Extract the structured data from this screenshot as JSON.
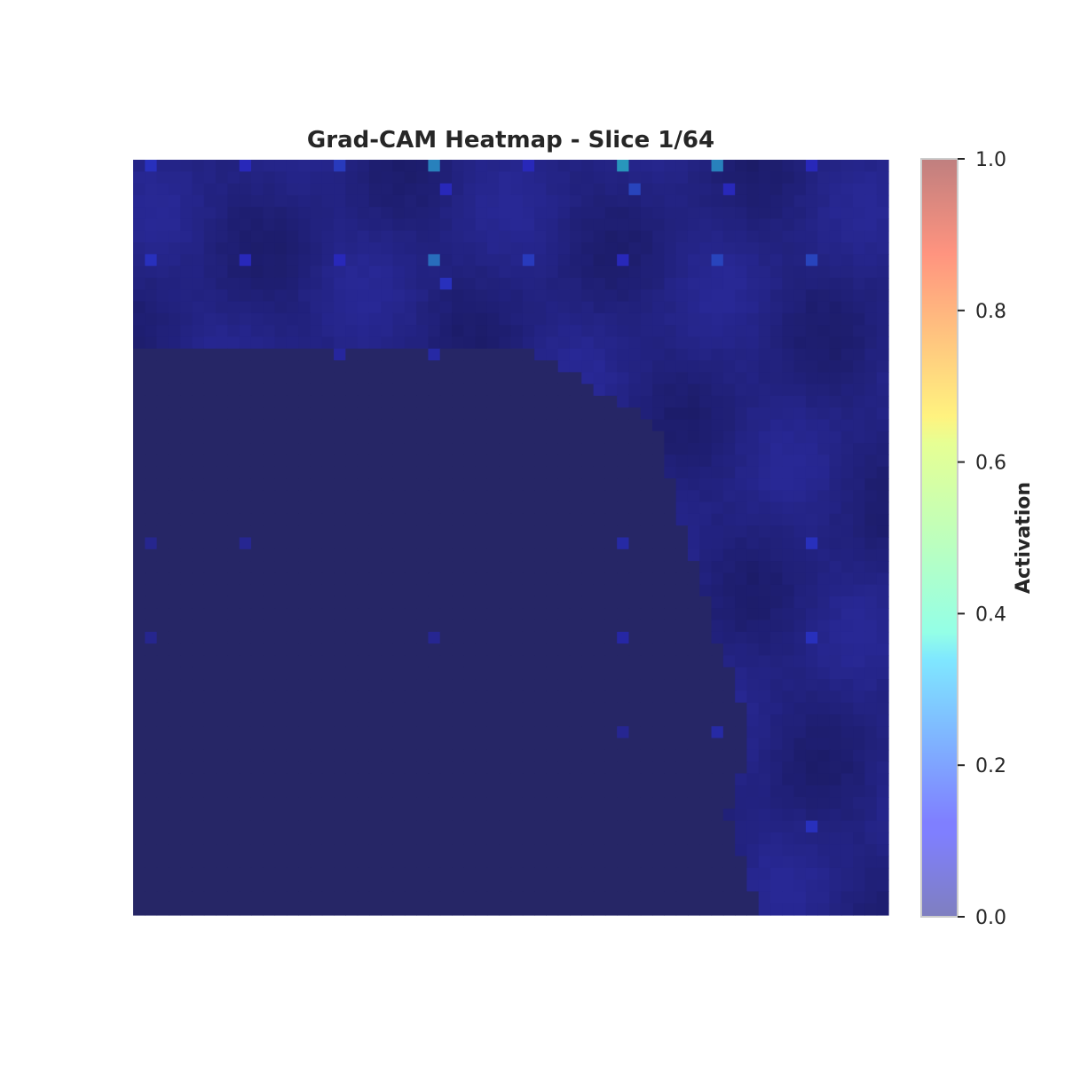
{
  "chart_data": {
    "type": "heatmap",
    "title": "Grad-CAM Heatmap - Slice 1/64",
    "grid_size": [
      64,
      64
    ],
    "value_range": [
      0.0,
      1.0
    ],
    "colormap": "jet",
    "overlay_alpha": 0.5,
    "axes_visible": false,
    "colorbar": {
      "label": "Activation",
      "ticks": [
        "0.0",
        "0.2",
        "0.4",
        "0.6",
        "0.8",
        "1.0"
      ],
      "tick_values": [
        0.0,
        0.2,
        0.4,
        0.6,
        0.8,
        1.0
      ],
      "placement": "right"
    },
    "background_levels": {
      "low_region": 0.0,
      "tissue_region": 0.05
    },
    "low_region_boundary_row_start_col": [
      {
        "row": 16,
        "col_end": 34
      },
      {
        "row": 22,
        "col_end": 44
      },
      {
        "row": 30,
        "col_end": 46
      },
      {
        "row": 40,
        "col_end": 49
      },
      {
        "row": 48,
        "col_end": 52
      },
      {
        "row": 55,
        "col_end": 50
      },
      {
        "row": 64,
        "col_end": 53
      }
    ],
    "hotspots": [
      {
        "row": 0,
        "col": 1,
        "value": 0.14
      },
      {
        "row": 0,
        "col": 9,
        "value": 0.12
      },
      {
        "row": 0,
        "col": 17,
        "value": 0.16
      },
      {
        "row": 0,
        "col": 25,
        "value": 0.3
      },
      {
        "row": 0,
        "col": 33,
        "value": 0.12
      },
      {
        "row": 0,
        "col": 41,
        "value": 0.34
      },
      {
        "row": 0,
        "col": 49,
        "value": 0.3
      },
      {
        "row": 0,
        "col": 57,
        "value": 0.12
      },
      {
        "row": 2,
        "col": 26,
        "value": 0.12
      },
      {
        "row": 2,
        "col": 42,
        "value": 0.18
      },
      {
        "row": 2,
        "col": 50,
        "value": 0.12
      },
      {
        "row": 8,
        "col": 1,
        "value": 0.14
      },
      {
        "row": 8,
        "col": 9,
        "value": 0.12
      },
      {
        "row": 8,
        "col": 17,
        "value": 0.12
      },
      {
        "row": 8,
        "col": 25,
        "value": 0.26
      },
      {
        "row": 8,
        "col": 33,
        "value": 0.16
      },
      {
        "row": 8,
        "col": 41,
        "value": 0.12
      },
      {
        "row": 8,
        "col": 49,
        "value": 0.18
      },
      {
        "row": 8,
        "col": 57,
        "value": 0.18
      },
      {
        "row": 10,
        "col": 26,
        "value": 0.14
      },
      {
        "row": 16,
        "col": 17,
        "value": 0.1
      },
      {
        "row": 16,
        "col": 25,
        "value": 0.16
      },
      {
        "row": 32,
        "col": 1,
        "value": 0.04
      },
      {
        "row": 32,
        "col": 9,
        "value": 0.05
      },
      {
        "row": 32,
        "col": 41,
        "value": 0.18
      },
      {
        "row": 32,
        "col": 57,
        "value": 0.14
      },
      {
        "row": 40,
        "col": 1,
        "value": 0.04
      },
      {
        "row": 40,
        "col": 25,
        "value": 0.05
      },
      {
        "row": 40,
        "col": 41,
        "value": 0.14
      },
      {
        "row": 40,
        "col": 57,
        "value": 0.14
      },
      {
        "row": 48,
        "col": 41,
        "value": 0.05
      },
      {
        "row": 48,
        "col": 49,
        "value": 0.18
      },
      {
        "row": 56,
        "col": 57,
        "value": 0.14
      }
    ]
  }
}
